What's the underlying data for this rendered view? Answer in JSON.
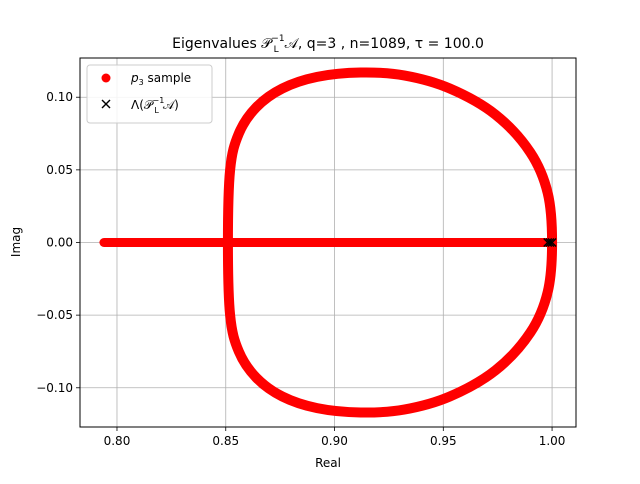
{
  "chart_data": {
    "type": "scatter",
    "title": "Eigenvalues 𝒫",
    "title_sup": "−1",
    "title_sub": "L",
    "title_rest": "𝒜, q=3 , n=1089, τ = 100.0",
    "xlabel": "Real",
    "ylabel": "Imag",
    "xlim": [
      0.783,
      1.011
    ],
    "ylim": [
      -0.127,
      0.127
    ],
    "xticks": [
      0.8,
      0.85,
      0.9,
      0.95,
      1.0
    ],
    "xtick_labels": [
      "0.80",
      "0.85",
      "0.90",
      "0.95",
      "1.00"
    ],
    "yticks": [
      -0.1,
      -0.05,
      0.0,
      0.05,
      0.1
    ],
    "ytick_labels": [
      "−0.10",
      "−0.05",
      "0.00",
      "0.05",
      "0.10"
    ],
    "grid": true,
    "legend_position": "top-left",
    "colors": {
      "sample": "#ff0000",
      "eigen": "#000000",
      "grid": "#b0b0b0"
    },
    "series": [
      {
        "name": "p",
        "name_sub": "3",
        "name_rest": " sample",
        "marker": "circle",
        "color": "#ff0000",
        "curve_closed": [
          [
            0.851,
            0.0
          ],
          [
            0.852,
            0.05
          ],
          [
            0.856,
            0.075
          ],
          [
            0.864,
            0.093
          ],
          [
            0.876,
            0.106
          ],
          [
            0.892,
            0.114
          ],
          [
            0.912,
            0.117
          ],
          [
            0.932,
            0.115
          ],
          [
            0.953,
            0.106
          ],
          [
            0.974,
            0.088
          ],
          [
            0.99,
            0.062
          ],
          [
            0.998,
            0.034
          ],
          [
            1.0,
            0.0
          ],
          [
            0.998,
            -0.034
          ],
          [
            0.99,
            -0.062
          ],
          [
            0.974,
            -0.088
          ],
          [
            0.953,
            -0.106
          ],
          [
            0.932,
            -0.115
          ],
          [
            0.912,
            -0.117
          ],
          [
            0.892,
            -0.114
          ],
          [
            0.876,
            -0.106
          ],
          [
            0.864,
            -0.093
          ],
          [
            0.856,
            -0.075
          ],
          [
            0.852,
            -0.05
          ]
        ],
        "real_axis_segment": [
          [
            0.794,
            0.0
          ],
          [
            0.998,
            0.0
          ]
        ]
      },
      {
        "name": "Λ(𝒫",
        "name_sup": "−1",
        "name_sub": "L",
        "name_rest": "𝒜)",
        "marker": "x",
        "color": "#000000",
        "points": [
          [
            0.998,
            0.0
          ],
          [
            0.999,
            0.0
          ],
          [
            1.0,
            0.0
          ]
        ]
      }
    ]
  }
}
